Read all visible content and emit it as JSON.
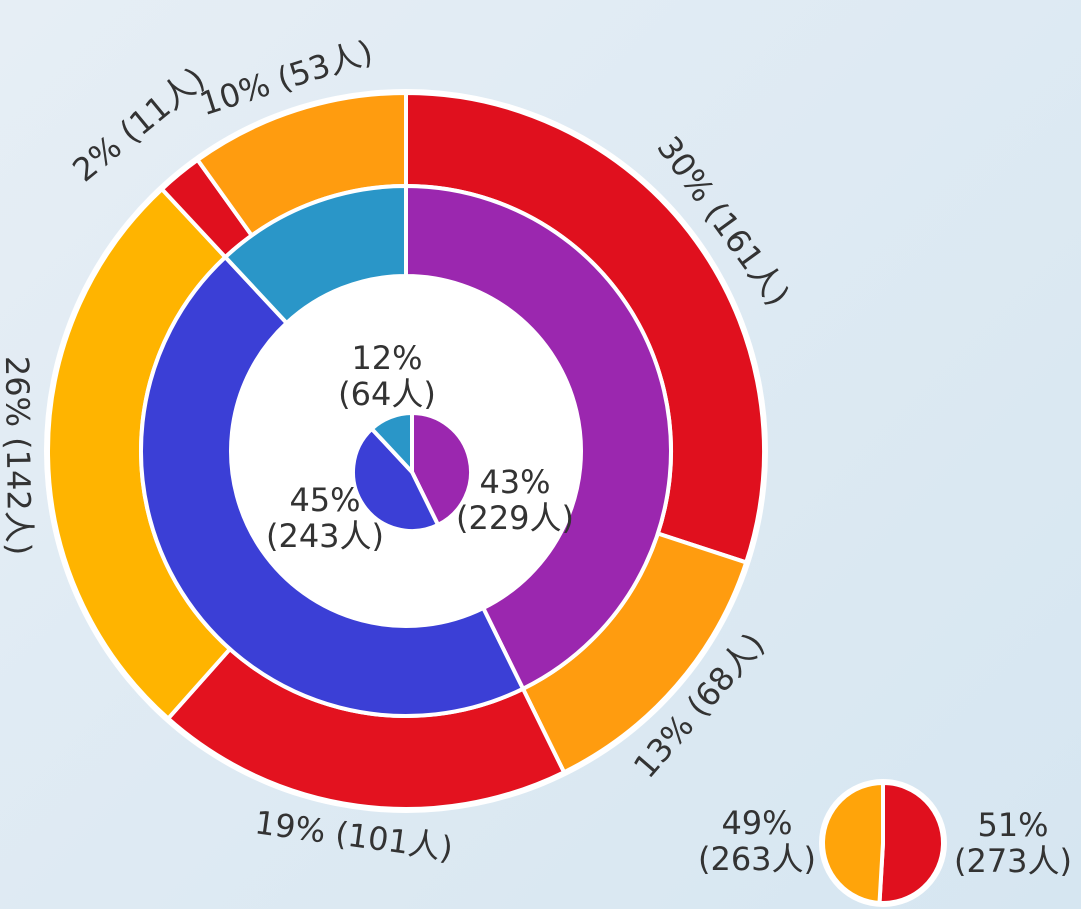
{
  "chart_data": {
    "type": "sunburst",
    "inner": {
      "values": [
        229,
        243,
        64
      ],
      "value_labels": [
        "43%\n(229人)",
        "45%\n(243人)",
        "12%\n(64人)"
      ],
      "colors": [
        "#9b27af",
        "#3b3fd6",
        "#2a96c8"
      ]
    },
    "outer": {
      "values": [
        161,
        68,
        101,
        142,
        11,
        53
      ],
      "value_labels": [
        "30% (161人)",
        "13% (68人)",
        "19% (101人)",
        "26% (142人)",
        "2% (11人)",
        "10% (53人)"
      ],
      "colors": [
        "#e0101e",
        "#ff9c0f",
        "#e3121f",
        "#ffb400",
        "#e0101e",
        "#ff9c0f"
      ]
    },
    "summary": {
      "values": [
        273,
        263
      ],
      "value_labels": [
        "51%\n(273人)",
        "49%\n(263人)"
      ],
      "colors": [
        "#e0101e",
        "#ffa40a"
      ]
    }
  }
}
